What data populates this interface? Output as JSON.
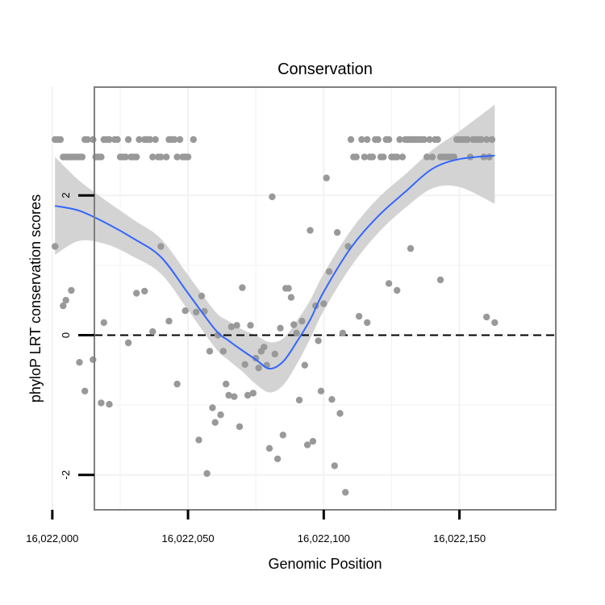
{
  "chart_data": {
    "type": "scatter",
    "title": "Conservation",
    "xlabel": "Genomic Position",
    "ylabel": "phyloP LRT conservation scores",
    "xlim": [
      15.5,
      185.5
    ],
    "ylim": [
      -2.5,
      3.55
    ],
    "x_ticks": [
      {
        "value": 0,
        "label": "16,022,000"
      },
      {
        "value": 50,
        "label": "16,022,050"
      },
      {
        "value": 100,
        "label": "16,022,100"
      },
      {
        "value": 150,
        "label": "16,022,150"
      }
    ],
    "y_ticks": [
      {
        "value": -2,
        "label": "-2"
      },
      {
        "value": 0,
        "label": "0"
      },
      {
        "value": 2,
        "label": "2"
      }
    ],
    "reference_line": {
      "y": 0,
      "style": "dashed"
    },
    "colors": {
      "points": "#999999",
      "smooth": "#3366FF",
      "ribbon": "#d3d3d3",
      "panel_border": "#7f7f7f",
      "grid": "#f2f2f2"
    },
    "points": [
      [
        1,
        2.8
      ],
      [
        2,
        2.8
      ],
      [
        3,
        2.8
      ],
      [
        4,
        2.55
      ],
      [
        5,
        2.55
      ],
      [
        6,
        2.55
      ],
      [
        7,
        2.55
      ],
      [
        8,
        2.55
      ],
      [
        9,
        2.55
      ],
      [
        10,
        2.55
      ],
      [
        11,
        2.55
      ],
      [
        12,
        2.8
      ],
      [
        13,
        2.8
      ],
      [
        15,
        2.8
      ],
      [
        16,
        2.55
      ],
      [
        17,
        2.55
      ],
      [
        18,
        2.55
      ],
      [
        19,
        2.8
      ],
      [
        20,
        2.8
      ],
      [
        21,
        2.8
      ],
      [
        23,
        2.8
      ],
      [
        24,
        2.8
      ],
      [
        25,
        2.55
      ],
      [
        26,
        2.55
      ],
      [
        27,
        2.55
      ],
      [
        28,
        2.8
      ],
      [
        29,
        2.55
      ],
      [
        30,
        2.55
      ],
      [
        31,
        2.55
      ],
      [
        32,
        2.8
      ],
      [
        34,
        2.8
      ],
      [
        35,
        2.8
      ],
      [
        36,
        2.8
      ],
      [
        37,
        2.55
      ],
      [
        38,
        2.8
      ],
      [
        39,
        2.55
      ],
      [
        40,
        2.55
      ],
      [
        42,
        2.55
      ],
      [
        43,
        2.8
      ],
      [
        44,
        2.8
      ],
      [
        45,
        2.8
      ],
      [
        46,
        2.55
      ],
      [
        47,
        2.8
      ],
      [
        48,
        2.55
      ],
      [
        49,
        2.55
      ],
      [
        50,
        2.55
      ],
      [
        52,
        2.8
      ],
      [
        110,
        2.8
      ],
      [
        111,
        2.55
      ],
      [
        112,
        2.55
      ],
      [
        114,
        2.8
      ],
      [
        115,
        2.55
      ],
      [
        116,
        2.8
      ],
      [
        117,
        2.55
      ],
      [
        118,
        2.55
      ],
      [
        119,
        2.8
      ],
      [
        120,
        2.8
      ],
      [
        121,
        2.55
      ],
      [
        122,
        2.55
      ],
      [
        123,
        2.8
      ],
      [
        124,
        2.8
      ],
      [
        125,
        2.55
      ],
      [
        126,
        2.55
      ],
      [
        127,
        2.55
      ],
      [
        128,
        2.8
      ],
      [
        129,
        2.55
      ],
      [
        130,
        2.8
      ],
      [
        131,
        2.8
      ],
      [
        132,
        2.8
      ],
      [
        133,
        2.8
      ],
      [
        134,
        2.8
      ],
      [
        135,
        2.8
      ],
      [
        136,
        2.8
      ],
      [
        137,
        2.8
      ],
      [
        138,
        2.55
      ],
      [
        139,
        2.8
      ],
      [
        140,
        2.55
      ],
      [
        141,
        2.8
      ],
      [
        142,
        2.8
      ],
      [
        143,
        2.55
      ],
      [
        144,
        2.55
      ],
      [
        145,
        2.55
      ],
      [
        146,
        2.55
      ],
      [
        147,
        2.55
      ],
      [
        148,
        2.55
      ],
      [
        149,
        2.8
      ],
      [
        150,
        2.8
      ],
      [
        151,
        2.8
      ],
      [
        152,
        2.8
      ],
      [
        153,
        2.8
      ],
      [
        154,
        2.55
      ],
      [
        155,
        2.8
      ],
      [
        156,
        2.8
      ],
      [
        157,
        2.8
      ],
      [
        158,
        2.8
      ],
      [
        159,
        2.55
      ],
      [
        160,
        2.8
      ],
      [
        161,
        2.55
      ],
      [
        162,
        2.8
      ],
      [
        1,
        1.27
      ],
      [
        4,
        0.42
      ],
      [
        5,
        0.5
      ],
      [
        7,
        0.64
      ],
      [
        10,
        -0.39
      ],
      [
        12,
        -0.8
      ],
      [
        15,
        -0.35
      ],
      [
        18,
        -0.97
      ],
      [
        19,
        0.18
      ],
      [
        21,
        -0.99
      ],
      [
        28,
        -0.11
      ],
      [
        31,
        0.6
      ],
      [
        34,
        0.63
      ],
      [
        37,
        0.05
      ],
      [
        40,
        1.27
      ],
      [
        43,
        0.2
      ],
      [
        46,
        -0.7
      ],
      [
        49,
        0.35
      ],
      [
        53,
        0.33
      ],
      [
        54,
        -1.5
      ],
      [
        55,
        0.56
      ],
      [
        56,
        0.34
      ],
      [
        57,
        -1.98
      ],
      [
        58,
        -0.23
      ],
      [
        59,
        -1.04
      ],
      [
        60,
        -1.25
      ],
      [
        61,
        0.0
      ],
      [
        62,
        -1.14
      ],
      [
        63,
        -0.23
      ],
      [
        64,
        -0.7
      ],
      [
        65,
        -0.86
      ],
      [
        66,
        0.12
      ],
      [
        67,
        -0.88
      ],
      [
        68,
        0.14
      ],
      [
        69,
        -1.31
      ],
      [
        70,
        0.68
      ],
      [
        71,
        -0.42
      ],
      [
        72,
        -0.86
      ],
      [
        73,
        0.14
      ],
      [
        74,
        -0.83
      ],
      [
        75,
        -0.33
      ],
      [
        76,
        -0.47
      ],
      [
        77,
        -0.23
      ],
      [
        78,
        -0.17
      ],
      [
        79,
        -0.43
      ],
      [
        80,
        -1.62
      ],
      [
        81,
        1.98
      ],
      [
        82,
        -0.27
      ],
      [
        83,
        -1.77
      ],
      [
        84,
        0.1
      ],
      [
        85,
        -1.43
      ],
      [
        86,
        0.67
      ],
      [
        87,
        0.67
      ],
      [
        88,
        0.54
      ],
      [
        89,
        0.15
      ],
      [
        90,
        0.03
      ],
      [
        91,
        -0.93
      ],
      [
        92,
        0.2
      ],
      [
        93,
        -0.43
      ],
      [
        94,
        -1.57
      ],
      [
        95,
        1.5
      ],
      [
        96,
        -1.52
      ],
      [
        97,
        0.42
      ],
      [
        98,
        -0.08
      ],
      [
        99,
        -0.8
      ],
      [
        100,
        0.45
      ],
      [
        101,
        2.25
      ],
      [
        102,
        0.91
      ],
      [
        103,
        -0.92
      ],
      [
        104,
        -1.87
      ],
      [
        105,
        1.47
      ],
      [
        106,
        -1.12
      ],
      [
        107,
        0.03
      ],
      [
        108,
        -2.25
      ],
      [
        109,
        1.27
      ],
      [
        113,
        0.27
      ],
      [
        116,
        0.18
      ],
      [
        124,
        0.74
      ],
      [
        127,
        0.64
      ],
      [
        132,
        1.24
      ],
      [
        143,
        0.79
      ],
      [
        160,
        0.26
      ],
      [
        163,
        0.18
      ]
    ],
    "smooth": [
      {
        "x": 1,
        "y": 1.85,
        "lo": 1.15,
        "hi": 2.55
      },
      {
        "x": 10,
        "y": 1.78,
        "lo": 1.35,
        "hi": 2.21
      },
      {
        "x": 20,
        "y": 1.6,
        "lo": 1.3,
        "hi": 1.92
      },
      {
        "x": 30,
        "y": 1.38,
        "lo": 1.12,
        "hi": 1.65
      },
      {
        "x": 40,
        "y": 1.12,
        "lo": 0.88,
        "hi": 1.38
      },
      {
        "x": 50,
        "y": 0.6,
        "lo": 0.36,
        "hi": 0.86
      },
      {
        "x": 60,
        "y": 0.08,
        "lo": -0.18,
        "hi": 0.34
      },
      {
        "x": 65,
        "y": -0.08,
        "lo": -0.36,
        "hi": 0.2
      },
      {
        "x": 70,
        "y": -0.22,
        "lo": -0.52,
        "hi": 0.08
      },
      {
        "x": 75,
        "y": -0.35,
        "lo": -0.7,
        "hi": 0.0
      },
      {
        "x": 80,
        "y": -0.48,
        "lo": -0.82,
        "hi": -0.1
      },
      {
        "x": 85,
        "y": -0.38,
        "lo": -0.72,
        "hi": -0.05
      },
      {
        "x": 90,
        "y": -0.1,
        "lo": -0.42,
        "hi": 0.2
      },
      {
        "x": 95,
        "y": 0.22,
        "lo": -0.05,
        "hi": 0.5
      },
      {
        "x": 100,
        "y": 0.62,
        "lo": 0.35,
        "hi": 0.88
      },
      {
        "x": 110,
        "y": 1.25,
        "lo": 0.98,
        "hi": 1.5
      },
      {
        "x": 120,
        "y": 1.7,
        "lo": 1.46,
        "hi": 1.96
      },
      {
        "x": 130,
        "y": 2.05,
        "lo": 1.82,
        "hi": 2.3
      },
      {
        "x": 140,
        "y": 2.38,
        "lo": 2.1,
        "hi": 2.65
      },
      {
        "x": 150,
        "y": 2.52,
        "lo": 2.12,
        "hi": 2.92
      },
      {
        "x": 163,
        "y": 2.57,
        "lo": 1.88,
        "hi": 3.3
      }
    ]
  }
}
